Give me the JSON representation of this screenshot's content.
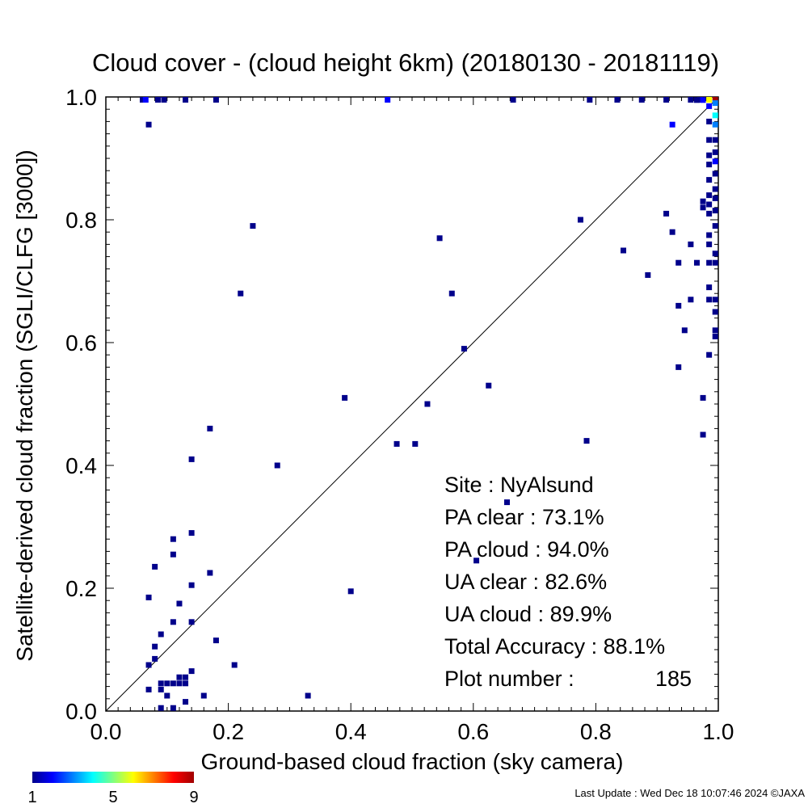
{
  "chart_data": {
    "type": "scatter",
    "title": "Cloud cover - (cloud height 6km)  (20180130 - 20181119)",
    "xlabel": "Ground-based cloud fraction (sky camera)",
    "ylabel": "Satellite-derived cloud fraction (SGLI/CLFG [3000])",
    "xlim": [
      0.0,
      1.0
    ],
    "ylim": [
      0.0,
      1.0
    ],
    "xticks": [
      "0.0",
      "0.2",
      "0.4",
      "0.6",
      "0.8",
      "1.0"
    ],
    "yticks": [
      "0.0",
      "0.2",
      "0.4",
      "0.6",
      "0.8",
      "1.0"
    ],
    "grid": false,
    "reference_line": "y = x",
    "colorbar": {
      "min_label": "1",
      "mid_label": "5",
      "max_label": "9",
      "colors": [
        "#00008b",
        "#0000ff",
        "#0080ff",
        "#00ffff",
        "#80ff80",
        "#ffff00",
        "#ff8000",
        "#ff0000",
        "#a00000"
      ]
    },
    "points": [
      {
        "x": 0.06,
        "y": 1.0,
        "count": 1
      },
      {
        "x": 0.065,
        "y": 1.0,
        "count": 2
      },
      {
        "x": 0.085,
        "y": 1.0,
        "count": 1
      },
      {
        "x": 0.095,
        "y": 1.0,
        "count": 1
      },
      {
        "x": 0.13,
        "y": 1.0,
        "count": 1
      },
      {
        "x": 0.18,
        "y": 1.0,
        "count": 1
      },
      {
        "x": 0.46,
        "y": 1.0,
        "count": 2
      },
      {
        "x": 0.665,
        "y": 1.0,
        "count": 1
      },
      {
        "x": 0.79,
        "y": 1.0,
        "count": 1
      },
      {
        "x": 0.835,
        "y": 1.0,
        "count": 1
      },
      {
        "x": 0.875,
        "y": 1.0,
        "count": 1
      },
      {
        "x": 0.915,
        "y": 1.0,
        "count": 1
      },
      {
        "x": 0.955,
        "y": 1.0,
        "count": 1
      },
      {
        "x": 0.97,
        "y": 1.0,
        "count": 1
      },
      {
        "x": 0.985,
        "y": 1.0,
        "count": 6
      },
      {
        "x": 0.995,
        "y": 1.0,
        "count": 9
      },
      {
        "x": 0.995,
        "y": 0.99,
        "count": 3
      },
      {
        "x": 0.995,
        "y": 0.97,
        "count": 4
      },
      {
        "x": 0.995,
        "y": 0.955,
        "count": 3
      },
      {
        "x": 0.985,
        "y": 0.985,
        "count": 2
      },
      {
        "x": 0.975,
        "y": 0.995,
        "count": 2
      },
      {
        "x": 0.965,
        "y": 0.995,
        "count": 1
      },
      {
        "x": 0.925,
        "y": 0.955,
        "count": 2
      },
      {
        "x": 0.07,
        "y": 0.955,
        "count": 1
      },
      {
        "x": 0.985,
        "y": 0.96,
        "count": 1
      },
      {
        "x": 0.995,
        "y": 0.93,
        "count": 1
      },
      {
        "x": 0.985,
        "y": 0.93,
        "count": 1
      },
      {
        "x": 0.995,
        "y": 0.91,
        "count": 1
      },
      {
        "x": 0.985,
        "y": 0.905,
        "count": 1
      },
      {
        "x": 0.995,
        "y": 0.895,
        "count": 2
      },
      {
        "x": 0.985,
        "y": 0.89,
        "count": 1
      },
      {
        "x": 0.995,
        "y": 0.875,
        "count": 1
      },
      {
        "x": 0.985,
        "y": 0.865,
        "count": 1
      },
      {
        "x": 0.995,
        "y": 0.85,
        "count": 1
      },
      {
        "x": 0.985,
        "y": 0.84,
        "count": 1
      },
      {
        "x": 0.995,
        "y": 0.835,
        "count": 1
      },
      {
        "x": 0.985,
        "y": 0.825,
        "count": 1
      },
      {
        "x": 0.995,
        "y": 0.815,
        "count": 1
      },
      {
        "x": 0.985,
        "y": 0.81,
        "count": 1
      },
      {
        "x": 0.975,
        "y": 0.83,
        "count": 1
      },
      {
        "x": 0.975,
        "y": 0.82,
        "count": 1
      },
      {
        "x": 0.995,
        "y": 0.79,
        "count": 1
      },
      {
        "x": 0.985,
        "y": 0.775,
        "count": 1
      },
      {
        "x": 0.985,
        "y": 0.76,
        "count": 1
      },
      {
        "x": 0.995,
        "y": 0.745,
        "count": 1
      },
      {
        "x": 0.985,
        "y": 0.73,
        "count": 1
      },
      {
        "x": 0.995,
        "y": 0.73,
        "count": 1
      },
      {
        "x": 0.985,
        "y": 0.69,
        "count": 1
      },
      {
        "x": 0.995,
        "y": 0.67,
        "count": 1
      },
      {
        "x": 0.985,
        "y": 0.67,
        "count": 1
      },
      {
        "x": 0.995,
        "y": 0.65,
        "count": 1
      },
      {
        "x": 0.995,
        "y": 0.62,
        "count": 1
      },
      {
        "x": 0.995,
        "y": 0.61,
        "count": 1
      },
      {
        "x": 0.985,
        "y": 0.58,
        "count": 1
      },
      {
        "x": 0.975,
        "y": 0.51,
        "count": 1
      },
      {
        "x": 0.975,
        "y": 0.45,
        "count": 1
      },
      {
        "x": 0.955,
        "y": 0.76,
        "count": 1
      },
      {
        "x": 0.965,
        "y": 0.73,
        "count": 1
      },
      {
        "x": 0.935,
        "y": 0.73,
        "count": 1
      },
      {
        "x": 0.915,
        "y": 0.81,
        "count": 1
      },
      {
        "x": 0.925,
        "y": 0.78,
        "count": 1
      },
      {
        "x": 0.955,
        "y": 0.67,
        "count": 1
      },
      {
        "x": 0.935,
        "y": 0.66,
        "count": 1
      },
      {
        "x": 0.945,
        "y": 0.62,
        "count": 1
      },
      {
        "x": 0.935,
        "y": 0.56,
        "count": 1
      },
      {
        "x": 0.885,
        "y": 0.71,
        "count": 1
      },
      {
        "x": 0.845,
        "y": 0.75,
        "count": 1
      },
      {
        "x": 0.775,
        "y": 0.8,
        "count": 1
      },
      {
        "x": 0.785,
        "y": 0.44,
        "count": 1
      },
      {
        "x": 0.655,
        "y": 0.34,
        "count": 1
      },
      {
        "x": 0.625,
        "y": 0.53,
        "count": 1
      },
      {
        "x": 0.605,
        "y": 0.245,
        "count": 1
      },
      {
        "x": 0.585,
        "y": 0.59,
        "count": 1
      },
      {
        "x": 0.565,
        "y": 0.68,
        "count": 1
      },
      {
        "x": 0.545,
        "y": 0.77,
        "count": 1
      },
      {
        "x": 0.525,
        "y": 0.5,
        "count": 1
      },
      {
        "x": 0.505,
        "y": 0.435,
        "count": 1
      },
      {
        "x": 0.475,
        "y": 0.435,
        "count": 1
      },
      {
        "x": 0.39,
        "y": 0.51,
        "count": 1
      },
      {
        "x": 0.4,
        "y": 0.195,
        "count": 1
      },
      {
        "x": 0.28,
        "y": 0.4,
        "count": 1
      },
      {
        "x": 0.24,
        "y": 0.79,
        "count": 1
      },
      {
        "x": 0.22,
        "y": 0.68,
        "count": 1
      },
      {
        "x": 0.17,
        "y": 0.46,
        "count": 1
      },
      {
        "x": 0.14,
        "y": 0.41,
        "count": 1
      },
      {
        "x": 0.14,
        "y": 0.29,
        "count": 1
      },
      {
        "x": 0.11,
        "y": 0.28,
        "count": 1
      },
      {
        "x": 0.11,
        "y": 0.255,
        "count": 1
      },
      {
        "x": 0.08,
        "y": 0.235,
        "count": 1
      },
      {
        "x": 0.17,
        "y": 0.225,
        "count": 1
      },
      {
        "x": 0.14,
        "y": 0.205,
        "count": 1
      },
      {
        "x": 0.07,
        "y": 0.185,
        "count": 1
      },
      {
        "x": 0.12,
        "y": 0.175,
        "count": 1
      },
      {
        "x": 0.11,
        "y": 0.145,
        "count": 1
      },
      {
        "x": 0.14,
        "y": 0.145,
        "count": 1
      },
      {
        "x": 0.09,
        "y": 0.125,
        "count": 1
      },
      {
        "x": 0.18,
        "y": 0.115,
        "count": 1
      },
      {
        "x": 0.08,
        "y": 0.105,
        "count": 1
      },
      {
        "x": 0.08,
        "y": 0.085,
        "count": 1
      },
      {
        "x": 0.07,
        "y": 0.075,
        "count": 1
      },
      {
        "x": 0.21,
        "y": 0.075,
        "count": 1
      },
      {
        "x": 0.14,
        "y": 0.065,
        "count": 1
      },
      {
        "x": 0.09,
        "y": 0.045,
        "count": 1
      },
      {
        "x": 0.1,
        "y": 0.045,
        "count": 1
      },
      {
        "x": 0.11,
        "y": 0.045,
        "count": 1
      },
      {
        "x": 0.12,
        "y": 0.045,
        "count": 1
      },
      {
        "x": 0.13,
        "y": 0.045,
        "count": 1
      },
      {
        "x": 0.12,
        "y": 0.055,
        "count": 1
      },
      {
        "x": 0.13,
        "y": 0.055,
        "count": 1
      },
      {
        "x": 0.07,
        "y": 0.035,
        "count": 1
      },
      {
        "x": 0.09,
        "y": 0.035,
        "count": 1
      },
      {
        "x": 0.1,
        "y": 0.025,
        "count": 1
      },
      {
        "x": 0.16,
        "y": 0.025,
        "count": 1
      },
      {
        "x": 0.33,
        "y": 0.025,
        "count": 1
      },
      {
        "x": 0.13,
        "y": 0.015,
        "count": 1
      },
      {
        "x": 0.09,
        "y": 0.005,
        "count": 1
      },
      {
        "x": 0.11,
        "y": 0.005,
        "count": 1
      }
    ],
    "annotations": {
      "site": "Site : NyAlsund",
      "pa_clear": "PA clear :  73.1%",
      "pa_cloud": "PA cloud :  94.0%",
      "ua_clear": "UA clear :  82.6%",
      "ua_cloud": "UA cloud :  89.9%",
      "total_accuracy": "Total Accuracy :  88.1%",
      "plot_number_label": "Plot number :",
      "plot_number_value": "185"
    },
    "footer": "Last Update : Wed Dec 18 10:07:46 2024  ©JAXA"
  }
}
